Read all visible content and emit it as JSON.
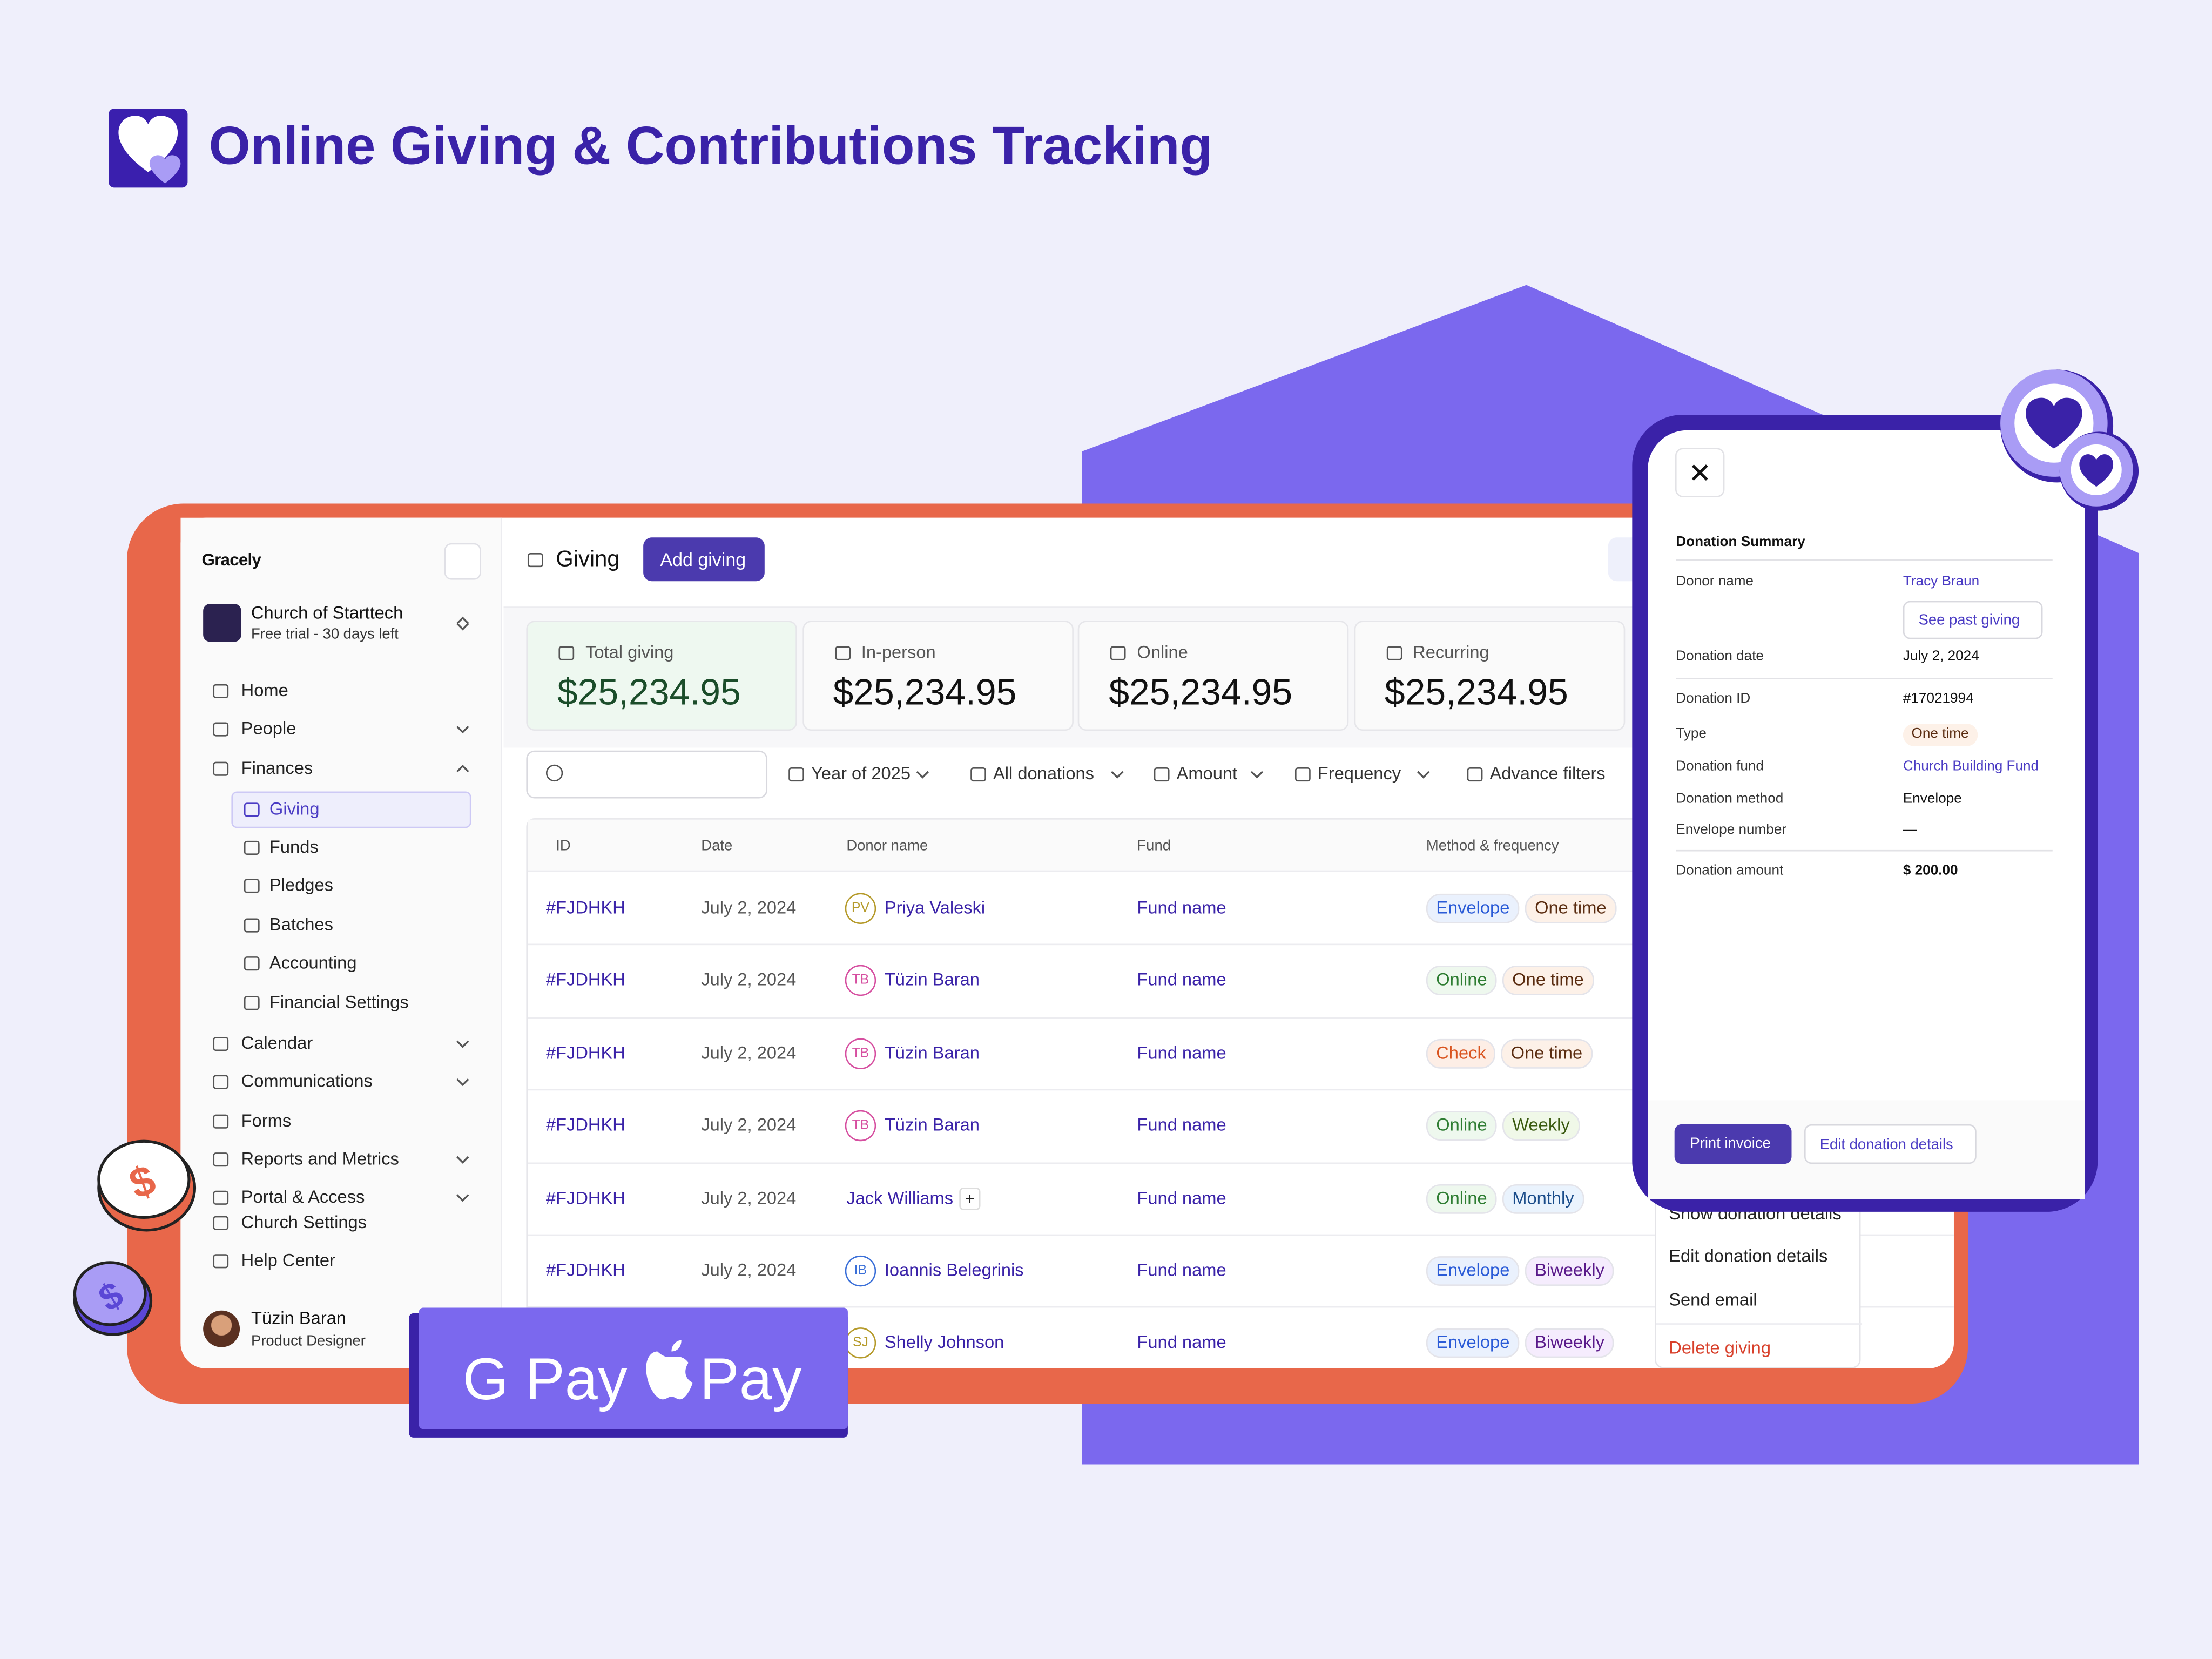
{
  "header": {
    "title": "Online Giving & Contributions Tracking"
  },
  "sidebar": {
    "brand": "Gracely",
    "org_name": "Church of Starttech",
    "org_plan": "Free trial - 30 days left",
    "nav": [
      "Home",
      "People",
      "Finances"
    ],
    "subnav": [
      "Giving",
      "Funds",
      "Pledges",
      "Batches",
      "Accounting",
      "Financial Settings"
    ],
    "nav2": [
      "Calendar",
      "Communications",
      "Forms",
      "Reports and Metrics",
      "Portal & Access",
      "Church Settings",
      "Help Center"
    ],
    "user": {
      "name": "Tüzin Baran",
      "role": "Product Designer"
    }
  },
  "page": {
    "title": "Giving",
    "add_button": "Add giving"
  },
  "stats": [
    {
      "label": "Total giving",
      "value": "$25,234.95"
    },
    {
      "label": "In-person",
      "value": "$25,234.95"
    },
    {
      "label": "Online",
      "value": "$25,234.95"
    },
    {
      "label": "Recurring",
      "value": "$25,234.95"
    }
  ],
  "filters": [
    "Year of 2025",
    "All donations",
    "Amount",
    "Frequency",
    "Advance filters"
  ],
  "table": {
    "columns": [
      "ID",
      "Date",
      "Donor name",
      "Fund",
      "Method & frequency"
    ],
    "rows": [
      {
        "id": "#FJDHKH",
        "date": "July 2, 2024",
        "initials": "PV",
        "donor": "Priya Valeski",
        "fund": "Fund name",
        "method": "Envelope",
        "frequency": "One time"
      },
      {
        "id": "#FJDHKH",
        "date": "July 2, 2024",
        "initials": "TB",
        "donor": "Tüzin Baran",
        "fund": "Fund name",
        "method": "Online",
        "frequency": "One time"
      },
      {
        "id": "#FJDHKH",
        "date": "July 2, 2024",
        "initials": "TB",
        "donor": "Tüzin Baran",
        "fund": "Fund name",
        "method": "Check",
        "frequency": "One time"
      },
      {
        "id": "#FJDHKH",
        "date": "July 2, 2024",
        "initials": "TB",
        "donor": "Tüzin Baran",
        "fund": "Fund name",
        "method": "Online",
        "frequency": "Weekly"
      },
      {
        "id": "#FJDHKH",
        "date": "July 2, 2024",
        "donor": "Jack Williams",
        "extra": "+",
        "fund": "Fund name",
        "method": "Online",
        "frequency": "Monthly"
      },
      {
        "id": "#FJDHKH",
        "date": "July 2, 2024",
        "initials": "IB",
        "donor": "Ioannis Belegrinis",
        "fund": "Fund name",
        "method": "Envelope",
        "frequency": "Biweekly"
      },
      {
        "id": "#FJDHKH",
        "date": "July 2, 2024",
        "initials": "SJ",
        "donor": "Shelly Johnson",
        "fund": "Fund name",
        "method": "Envelope",
        "frequency": "Biweekly"
      }
    ]
  },
  "context_menu": [
    "Show donation details",
    "Edit donation details",
    "Send email",
    "Delete giving"
  ],
  "panel": {
    "title": "Donation Summary",
    "fields": [
      {
        "label": "Donor name",
        "value": "Tracy Braun"
      },
      {
        "label": "Donation date",
        "value": "July 2, 2024"
      },
      {
        "label": "Donation ID",
        "value": "#17021994"
      },
      {
        "label": "Type",
        "value": "One time"
      },
      {
        "label": "Donation fund",
        "value": "Church Building Fund"
      },
      {
        "label": "Donation method",
        "value": "Envelope"
      },
      {
        "label": "Envelope number",
        "value": "—"
      },
      {
        "label": "Donation amount",
        "value": "$ 200.00"
      }
    ],
    "see_past": "See past giving",
    "print": "Print invoice",
    "edit": "Edit donation details"
  },
  "payment": {
    "gpay": "G Pay",
    "apay": "Pay"
  }
}
